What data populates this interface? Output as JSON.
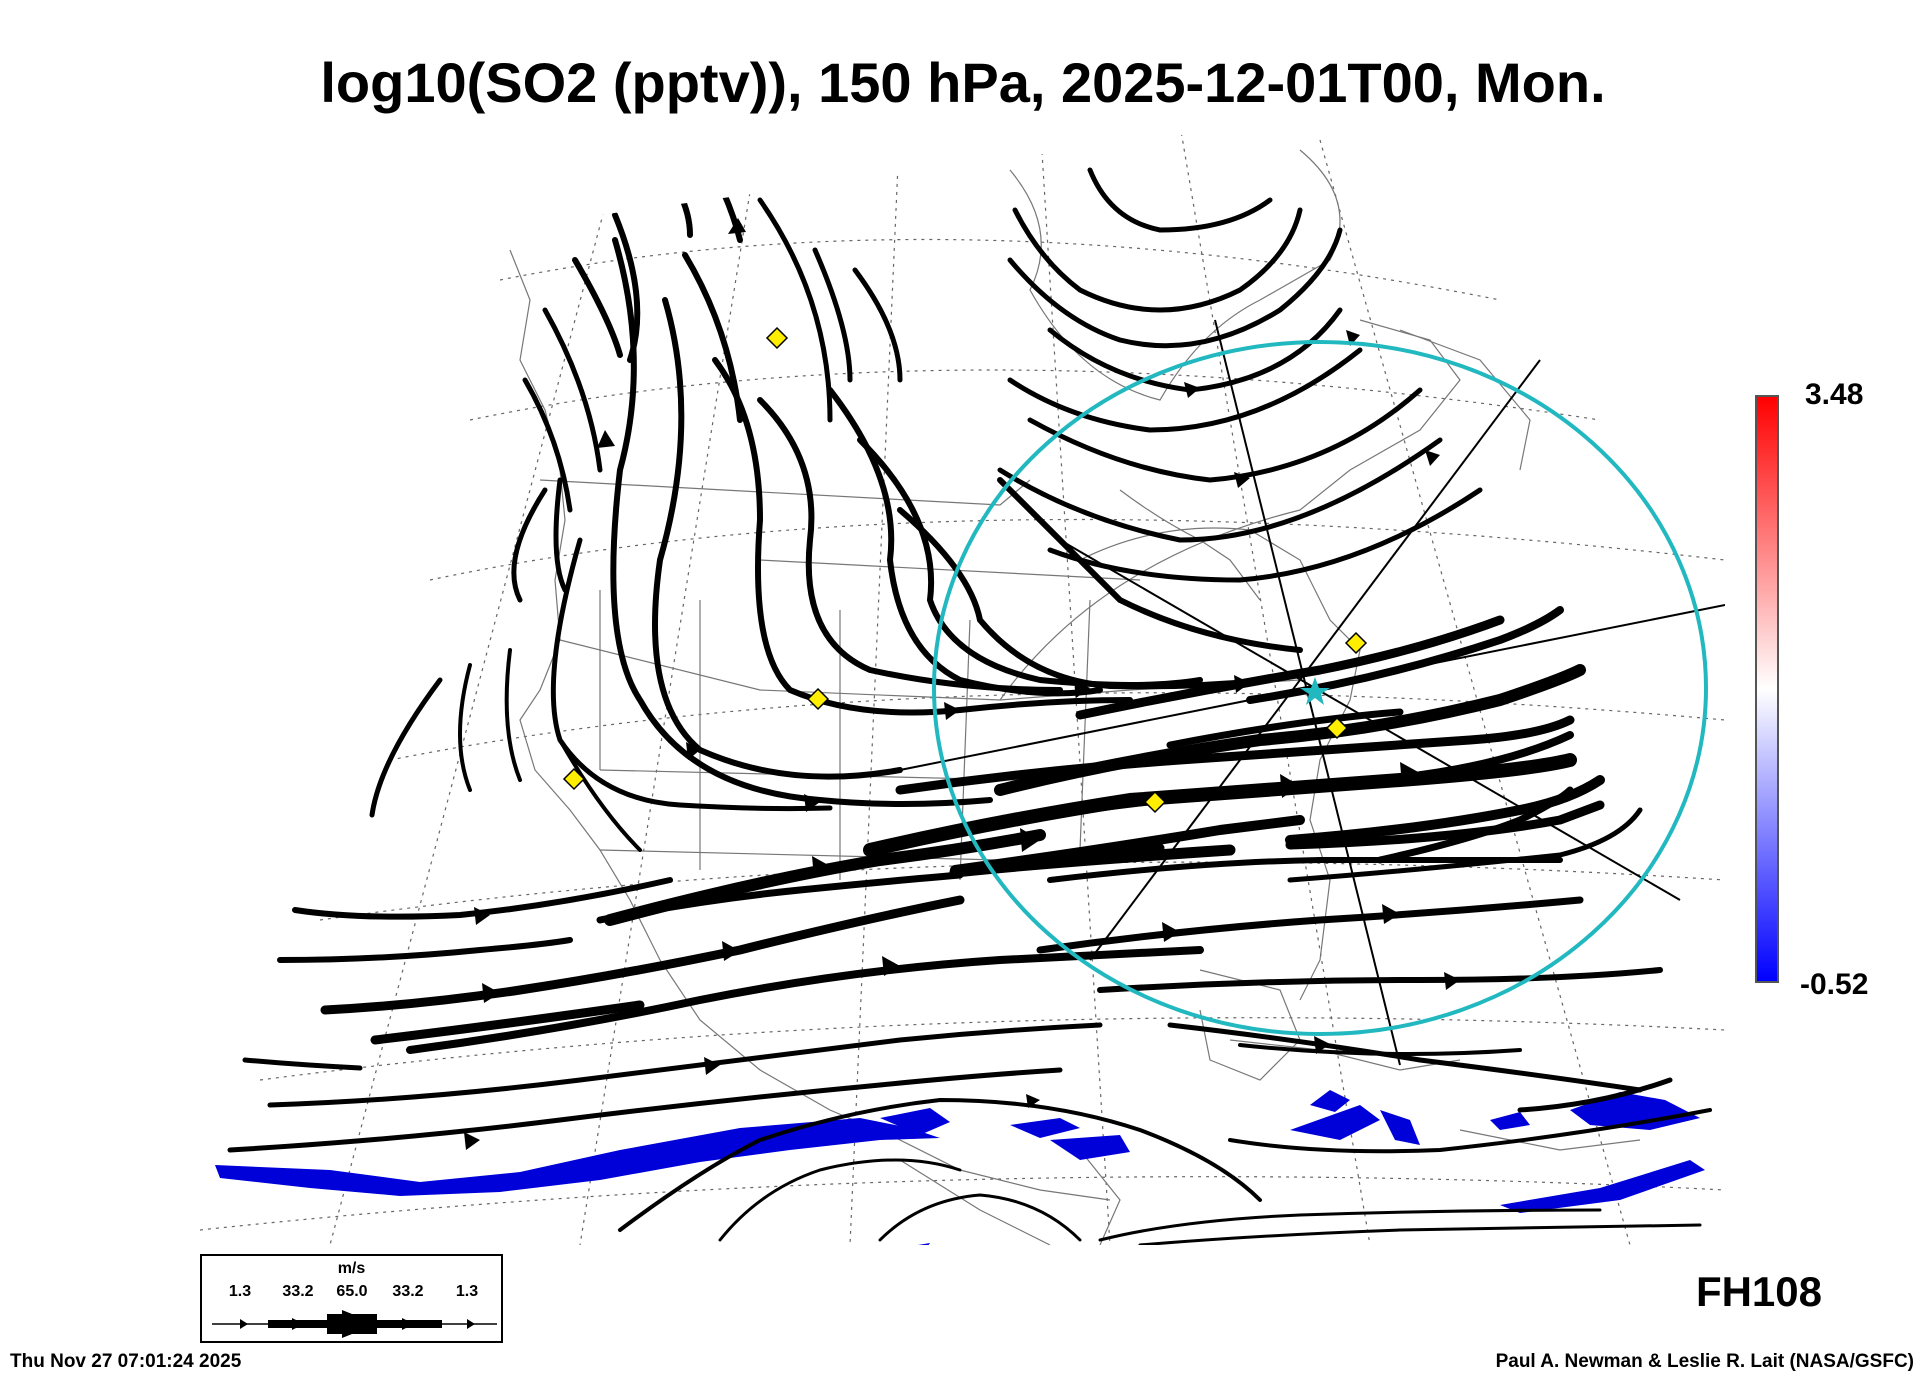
{
  "title": "log10(SO2 (pptv)), 150 hPa, 2025-12-01T00, Mon.",
  "colorbar": {
    "max_label": "3.48",
    "min_label": "-0.52",
    "color_top": "#ff0000",
    "color_mid": "#ffffff",
    "color_bottom": "#0000ff"
  },
  "forecast_hour": "FH108",
  "legend": {
    "unit": "m/s",
    "speeds": [
      "1.3",
      "33.2",
      "65.0",
      "33.2",
      "1.3"
    ]
  },
  "footer": {
    "timestamp": "Thu Nov 27 07:01:24 2025",
    "credit": "Paul A. Newman & Leslie R. Lait (NASA/GSFC)"
  },
  "map": {
    "circle_color": "#22b8c0",
    "marker_color": "#ffee00",
    "so2_low_color": "#0000d8",
    "streamline_color": "#000000"
  }
}
